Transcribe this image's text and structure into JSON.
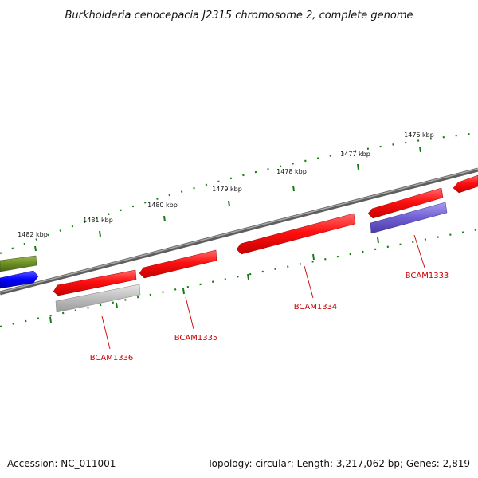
{
  "title": "Burkholderia cenocepacia J2315 chromosome 2, complete genome",
  "footer": {
    "accession": "Accession: NC_011001",
    "summary": "Topology: circular; Length: 3,217,062 bp; Genes: 2,819"
  },
  "tick_labels": [
    "1482 kbp",
    "1481 kbp",
    "1480 kbp",
    "1479 kbp",
    "1478 kbp",
    "1477 kbp",
    "1476 kbp"
  ],
  "gene_labels": [
    "BCAM1336",
    "BCAM1335",
    "BCAM1334",
    "BCAM1333"
  ],
  "colors": {
    "backbone": "#7a7a7a",
    "forward_gene": "#ff0000",
    "reverse_gene": "#ff0000",
    "gray_gene": "#b8b8b8",
    "purple_gene": "#7060d0",
    "olive_gene": "#6b8e23",
    "blue_gene": "#0000ff",
    "tick": "#1a7a1a",
    "label": "#cc0000"
  }
}
